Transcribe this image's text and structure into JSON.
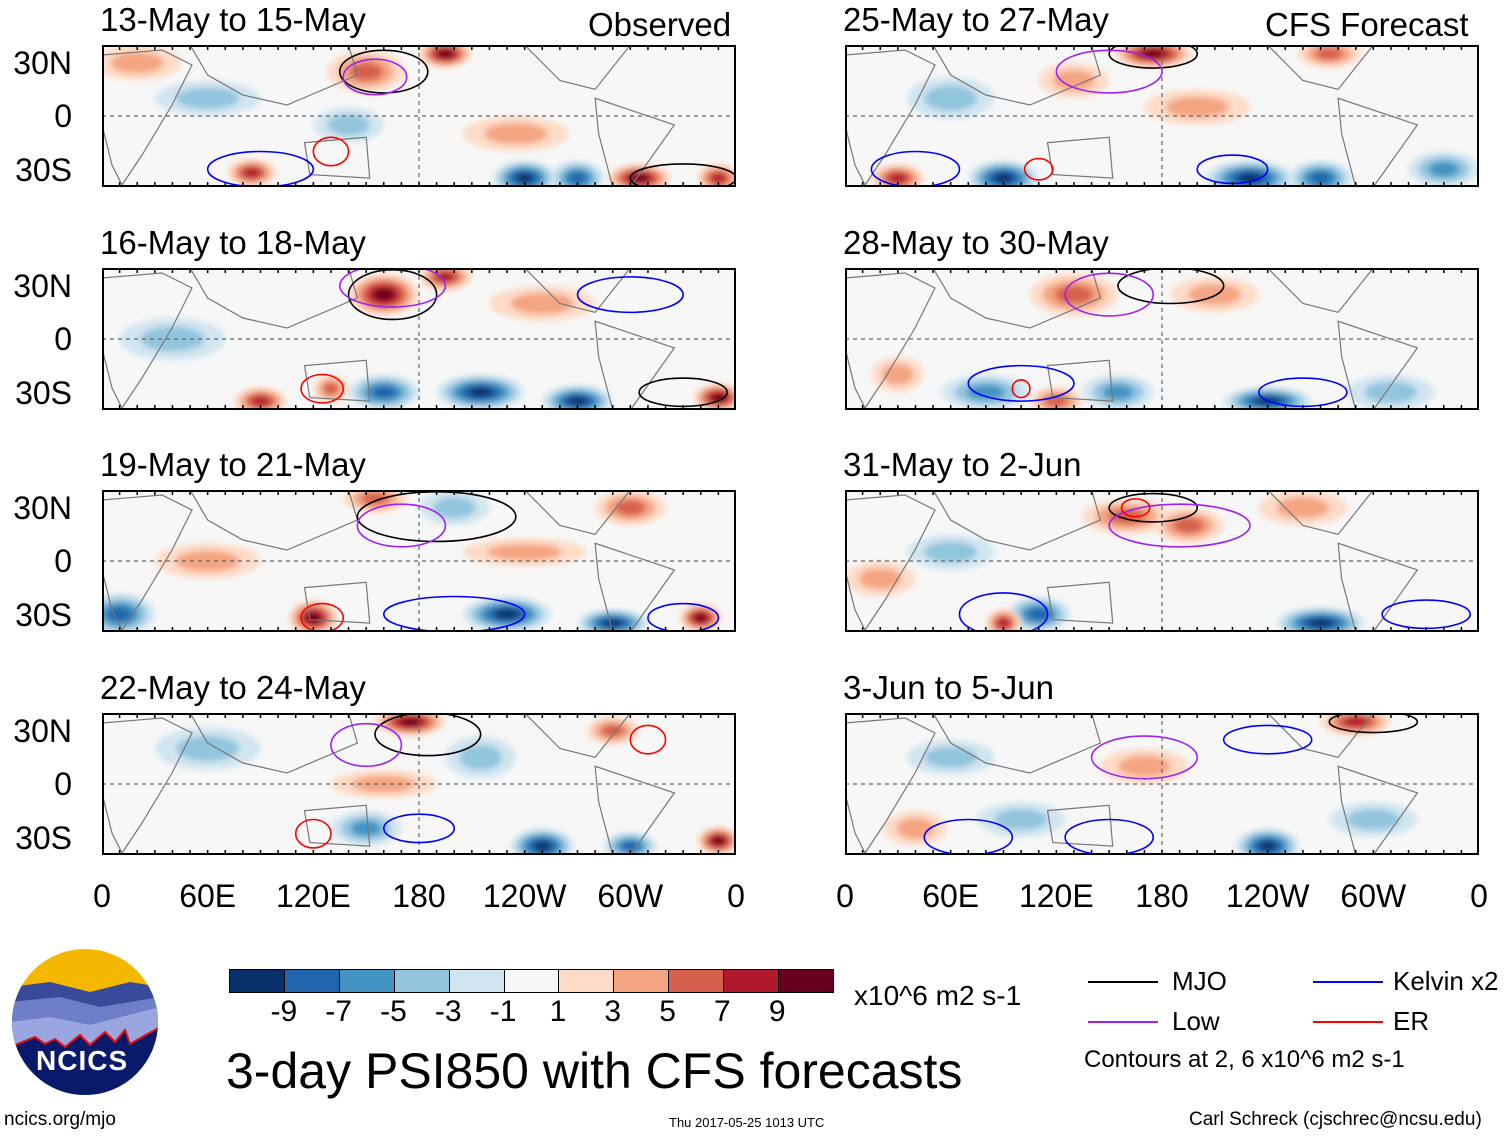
{
  "headers": {
    "left": "Observed",
    "right": "CFS Forecast"
  },
  "lat_labels": [
    "30N",
    "0",
    "30S"
  ],
  "lon_labels": [
    "0",
    "60E",
    "120E",
    "180",
    "120W",
    "60W",
    "0"
  ],
  "colorbar": {
    "colors": [
      "#08306b",
      "#2166ac",
      "#4393c3",
      "#92c5de",
      "#d1e5f0",
      "#f7f7f7",
      "#fddbc7",
      "#f4a582",
      "#d6604d",
      "#b2182b",
      "#67001f"
    ],
    "ticks": [
      "-9",
      "-7",
      "-5",
      "-3",
      "-1",
      "1",
      "3",
      "5",
      "7",
      "9"
    ],
    "units": "x10^6 m2 s-1"
  },
  "title": "3-day PSI850 with CFS forecasts",
  "legend": {
    "items": [
      {
        "label": "MJO",
        "color": "#000000"
      },
      {
        "label": "Low",
        "color": "#a020f0"
      },
      {
        "label": "Kelvin x2",
        "color": "#0000ff"
      },
      {
        "label": "ER",
        "color": "#ff0000"
      }
    ],
    "note": "Contours at 2, 6 x10^6 m2 s-1"
  },
  "footer": {
    "url": "ncics.org/mjo",
    "timestamp": "Thu 2017-05-25 1013 UTC",
    "author": "Carl Schreck (cjschrec@ncsu.edu)"
  },
  "logo": {
    "text": "NCICS"
  },
  "chart_data": {
    "type": "heatmap",
    "variable": "PSI850 anomaly",
    "lon_range": [
      0,
      360
    ],
    "lat_range": [
      -40,
      40
    ],
    "panels": [
      {
        "title": "13-May to 15-May",
        "blobs": [
          [
            150,
            25,
            5,
            22,
            12
          ],
          [
            195,
            35,
            9,
            15,
            8
          ],
          [
            235,
            -10,
            3,
            30,
            10
          ],
          [
            240,
            -35,
            -9,
            18,
            10
          ],
          [
            270,
            -35,
            -7,
            15,
            10
          ],
          [
            305,
            -35,
            9,
            18,
            8
          ],
          [
            350,
            -35,
            7,
            12,
            8
          ],
          [
            85,
            -32,
            7,
            14,
            8
          ],
          [
            20,
            30,
            3,
            25,
            10
          ],
          [
            140,
            -5,
            -3,
            20,
            10
          ],
          [
            60,
            10,
            -3,
            30,
            10
          ]
        ],
        "contours": [
          [
            "mjo",
            160,
            25,
            25,
            12
          ],
          [
            "low",
            155,
            22,
            18,
            10
          ],
          [
            "kelvin",
            90,
            -30,
            30,
            10
          ],
          [
            "er",
            130,
            -20,
            10,
            8
          ],
          [
            "mjo",
            330,
            -35,
            30,
            8
          ]
        ]
      },
      {
        "title": "16-May to 18-May",
        "blobs": [
          [
            160,
            25,
            9,
            20,
            12
          ],
          [
            195,
            35,
            7,
            15,
            8
          ],
          [
            160,
            -30,
            -7,
            20,
            10
          ],
          [
            215,
            -30,
            -9,
            25,
            10
          ],
          [
            270,
            -35,
            -9,
            20,
            9
          ],
          [
            350,
            -33,
            9,
            14,
            8
          ],
          [
            90,
            -35,
            7,
            15,
            8
          ],
          [
            130,
            -28,
            5,
            10,
            8
          ],
          [
            40,
            0,
            -3,
            30,
            12
          ],
          [
            250,
            20,
            3,
            30,
            10
          ]
        ],
        "contours": [
          [
            "mjo",
            165,
            25,
            25,
            14
          ],
          [
            "low",
            165,
            30,
            30,
            12
          ],
          [
            "er",
            125,
            -28,
            12,
            8
          ],
          [
            "kelvin",
            300,
            25,
            30,
            10
          ],
          [
            "mjo",
            330,
            -30,
            25,
            8
          ]
        ]
      },
      {
        "title": "19-May to 21-May",
        "blobs": [
          [
            10,
            -30,
            -7,
            20,
            12
          ],
          [
            120,
            -32,
            9,
            14,
            10
          ],
          [
            230,
            -30,
            -9,
            25,
            10
          ],
          [
            290,
            -35,
            -9,
            20,
            8
          ],
          [
            340,
            -32,
            9,
            12,
            8
          ],
          [
            300,
            30,
            5,
            20,
            10
          ],
          [
            155,
            35,
            5,
            18,
            8
          ],
          [
            240,
            5,
            3,
            35,
            8
          ],
          [
            200,
            30,
            -3,
            20,
            10
          ],
          [
            60,
            0,
            3,
            30,
            10
          ]
        ],
        "contours": [
          [
            "mjo",
            190,
            25,
            45,
            14
          ],
          [
            "low",
            170,
            20,
            25,
            12
          ],
          [
            "kelvin",
            200,
            -30,
            40,
            10
          ],
          [
            "er",
            125,
            -32,
            12,
            8
          ],
          [
            "kelvin",
            330,
            -32,
            20,
            8
          ]
        ]
      },
      {
        "title": "22-May to 24-May",
        "blobs": [
          [
            175,
            35,
            9,
            20,
            8
          ],
          [
            215,
            15,
            -3,
            20,
            12
          ],
          [
            250,
            -35,
            -9,
            18,
            10
          ],
          [
            350,
            -32,
            9,
            12,
            8
          ],
          [
            150,
            -25,
            -5,
            20,
            10
          ],
          [
            300,
            -35,
            -7,
            15,
            8
          ],
          [
            160,
            0,
            3,
            30,
            8
          ],
          [
            290,
            30,
            5,
            15,
            8
          ],
          [
            60,
            20,
            -3,
            30,
            12
          ]
        ],
        "contours": [
          [
            "mjo",
            185,
            28,
            30,
            12
          ],
          [
            "low",
            150,
            22,
            20,
            12
          ],
          [
            "kelvin",
            180,
            -25,
            20,
            8
          ],
          [
            "er",
            120,
            -28,
            10,
            8
          ],
          [
            "er",
            310,
            25,
            10,
            8
          ]
        ]
      },
      {
        "title": "25-May to 27-May",
        "blobs": [
          [
            175,
            35,
            9,
            22,
            8
          ],
          [
            275,
            35,
            5,
            18,
            8
          ],
          [
            90,
            -35,
            -9,
            20,
            10
          ],
          [
            230,
            -35,
            -9,
            25,
            10
          ],
          [
            270,
            -35,
            -7,
            18,
            10
          ],
          [
            30,
            -35,
            7,
            15,
            8
          ],
          [
            200,
            5,
            3,
            30,
            10
          ],
          [
            340,
            -30,
            -5,
            20,
            10
          ],
          [
            60,
            10,
            -3,
            25,
            12
          ],
          [
            130,
            20,
            3,
            20,
            10
          ]
        ],
        "contours": [
          [
            "mjo",
            175,
            35,
            25,
            8
          ],
          [
            "low",
            150,
            25,
            30,
            12
          ],
          [
            "kelvin",
            40,
            -30,
            25,
            10
          ],
          [
            "er",
            110,
            -30,
            8,
            6
          ],
          [
            "kelvin",
            220,
            -30,
            20,
            8
          ]
        ]
      },
      {
        "title": "28-May to 30-May",
        "blobs": [
          [
            130,
            25,
            5,
            25,
            12
          ],
          [
            80,
            -30,
            -5,
            25,
            10
          ],
          [
            155,
            -30,
            -5,
            20,
            10
          ],
          [
            240,
            -35,
            -9,
            25,
            8
          ],
          [
            120,
            -35,
            5,
            15,
            8
          ],
          [
            210,
            25,
            3,
            25,
            10
          ],
          [
            310,
            -30,
            -3,
            25,
            10
          ],
          [
            30,
            -20,
            3,
            15,
            10
          ]
        ],
        "contours": [
          [
            "mjo",
            185,
            30,
            30,
            10
          ],
          [
            "low",
            150,
            25,
            25,
            12
          ],
          [
            "kelvin",
            100,
            -25,
            30,
            10
          ],
          [
            "er",
            100,
            -28,
            5,
            5
          ],
          [
            "kelvin",
            260,
            -30,
            25,
            8
          ]
        ]
      },
      {
        "title": "31-May to 2-Jun",
        "blobs": [
          [
            160,
            25,
            5,
            25,
            10
          ],
          [
            195,
            20,
            5,
            20,
            10
          ],
          [
            110,
            -30,
            -7,
            18,
            10
          ],
          [
            270,
            -35,
            -9,
            25,
            9
          ],
          [
            90,
            -35,
            7,
            10,
            8
          ],
          [
            260,
            30,
            3,
            25,
            10
          ],
          [
            60,
            5,
            -3,
            25,
            10
          ],
          [
            20,
            -10,
            3,
            20,
            10
          ]
        ],
        "contours": [
          [
            "mjo",
            175,
            30,
            25,
            8
          ],
          [
            "low",
            190,
            20,
            40,
            12
          ],
          [
            "kelvin",
            90,
            -30,
            25,
            12
          ],
          [
            "er",
            165,
            30,
            8,
            5
          ],
          [
            "kelvin",
            330,
            -30,
            25,
            8
          ]
        ]
      },
      {
        "title": "3-Jun to 5-Jun",
        "blobs": [
          [
            290,
            35,
            7,
            20,
            8
          ],
          [
            240,
            -35,
            -9,
            18,
            10
          ],
          [
            100,
            -20,
            -3,
            25,
            10
          ],
          [
            170,
            10,
            3,
            25,
            10
          ],
          [
            40,
            -25,
            3,
            18,
            10
          ],
          [
            60,
            15,
            -3,
            25,
            10
          ],
          [
            300,
            -20,
            -3,
            25,
            10
          ]
        ],
        "contours": [
          [
            "mjo",
            300,
            35,
            25,
            6
          ],
          [
            "low",
            170,
            15,
            30,
            12
          ],
          [
            "kelvin",
            240,
            25,
            25,
            8
          ],
          [
            "kelvin",
            150,
            -30,
            25,
            10
          ],
          [
            "kelvin",
            70,
            -30,
            25,
            10
          ]
        ]
      }
    ]
  }
}
